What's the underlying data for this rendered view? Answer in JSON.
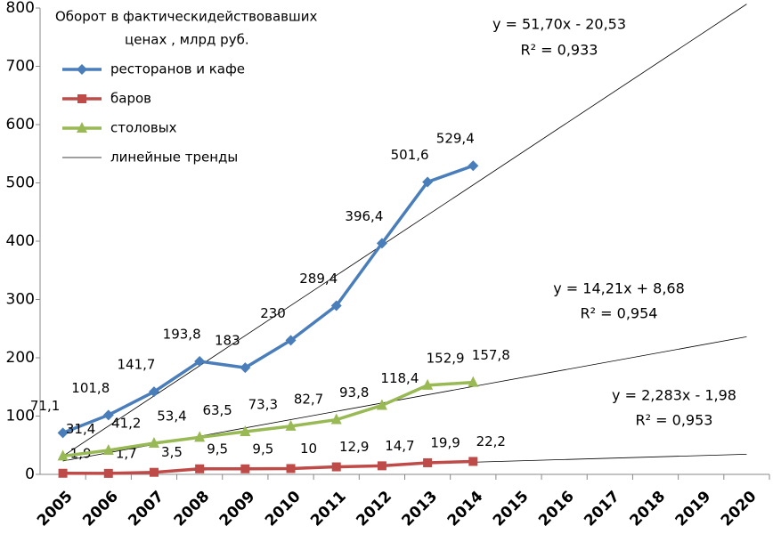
{
  "chart_data": {
    "type": "line",
    "legend_title": [
      "Оборот в фактическидействовавших",
      "ценах , млрд руб."
    ],
    "categories": [
      "2005",
      "2006",
      "2007",
      "2008",
      "2009",
      "2010",
      "2011",
      "2012",
      "2013",
      "2014",
      "2015",
      "2016",
      "2017",
      "2018",
      "2019",
      "2020"
    ],
    "series": [
      {
        "name": "ресторанов и кафе",
        "color": "#4a7ebb",
        "marker": "diamond",
        "values": [
          71.1,
          101.8,
          141.7,
          193.8,
          183,
          230,
          289.4,
          396.4,
          501.6,
          529.4,
          null,
          null,
          null,
          null,
          null,
          null
        ],
        "value_labels": [
          "71,1",
          "101,8",
          "141,7",
          "193,8",
          "183",
          "230",
          "289,4",
          "396,4",
          "501,6",
          "529,4",
          null,
          null,
          null,
          null,
          null,
          null
        ]
      },
      {
        "name": "баров",
        "color": "#be4b48",
        "marker": "square",
        "values": [
          1.9,
          1.7,
          3.5,
          9.5,
          9.5,
          10,
          12.9,
          14.7,
          19.9,
          22.2,
          null,
          null,
          null,
          null,
          null,
          null
        ],
        "value_labels": [
          "1,9",
          "1,7",
          "3,5",
          "9,5",
          "9,5",
          "10",
          "12,9",
          "14,7",
          "19,9",
          "22,2",
          null,
          null,
          null,
          null,
          null,
          null
        ]
      },
      {
        "name": "столовых",
        "color": "#98b954",
        "marker": "triangle",
        "values": [
          31.4,
          41.2,
          53.4,
          63.5,
          73.3,
          82.7,
          93.8,
          118.4,
          152.9,
          157.8,
          null,
          null,
          null,
          null,
          null,
          null
        ],
        "value_labels": [
          "31,4",
          "41,2",
          "53,4",
          "63,5",
          "73,3",
          "82,7",
          "93,8",
          "118,4",
          "152,9",
          "157,8",
          null,
          null,
          null,
          null,
          null,
          null
        ]
      }
    ],
    "trend_name": "линейные тренды",
    "trend_color": "#000000",
    "trendlines": [
      {
        "equation": "y = 51,70x - 20,53",
        "r2": "R² = 0,933",
        "slope": 51.7,
        "intercept": -20.53
      },
      {
        "equation": "y = 14,21x + 8,68",
        "r2": "R² = 0,954",
        "slope": 14.21,
        "intercept": 8.68
      },
      {
        "equation": "y = 2,283x - 1,98",
        "r2": "R² = 0,953",
        "slope": 2.283,
        "intercept": -1.98
      }
    ],
    "ylim": [
      0,
      800
    ],
    "yticks": [
      0,
      100,
      200,
      300,
      400,
      500,
      600,
      700,
      800
    ],
    "grid": false
  }
}
